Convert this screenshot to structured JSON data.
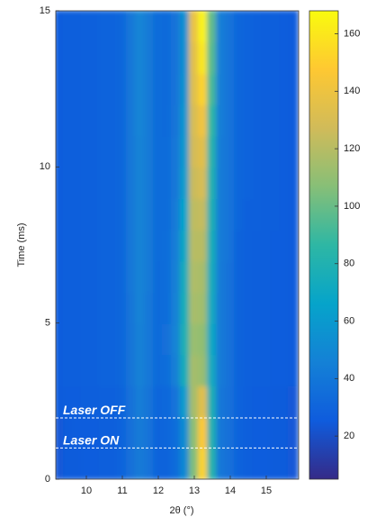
{
  "chart_data": {
    "type": "heatmap",
    "xlabel": "2θ (°)",
    "ylabel": "Time (ms)",
    "xlim": [
      9.15,
      15.9
    ],
    "ylim": [
      0,
      15
    ],
    "xticks": [
      10,
      11,
      12,
      13,
      14,
      15
    ],
    "yticks": [
      0,
      5,
      10,
      15
    ],
    "clim": [
      5,
      168
    ],
    "cticks": [
      20,
      40,
      60,
      80,
      100,
      120,
      140,
      160
    ],
    "colormap": [
      "#352a87",
      "#0f5cdd",
      "#1481d6",
      "#06a4ca",
      "#2eb7a4",
      "#87bf77",
      "#d1bb59",
      "#fec832",
      "#f9fb0e"
    ],
    "x": [
      9.25,
      9.5,
      9.75,
      10,
      10.25,
      10.5,
      10.75,
      11,
      11.25,
      11.5,
      11.75,
      12,
      12.25,
      12.5,
      12.75,
      13,
      13.25,
      13.5,
      13.75,
      14,
      14.25,
      14.5,
      14.75,
      15,
      15.25,
      15.5,
      15.75
    ],
    "y": [
      0.5,
      1.5,
      2.5,
      3.5,
      4.5,
      5.5,
      6.5,
      7.5,
      8.5,
      9.5,
      10.5,
      11.5,
      12.5,
      13.5,
      14.5
    ],
    "z": [
      [
        24,
        25,
        25,
        26,
        26,
        27,
        27,
        29,
        36,
        42,
        38,
        30,
        30,
        34,
        50,
        105,
        152,
        82,
        40,
        36,
        29,
        27,
        26,
        26,
        25,
        25,
        24
      ],
      [
        24,
        25,
        26,
        26,
        26,
        27,
        27,
        29,
        36,
        43,
        38,
        30,
        31,
        35,
        52,
        108,
        148,
        80,
        40,
        36,
        29,
        27,
        26,
        26,
        25,
        25,
        24
      ],
      [
        25,
        26,
        26,
        27,
        27,
        28,
        28,
        30,
        37,
        44,
        39,
        31,
        32,
        38,
        62,
        115,
        135,
        78,
        40,
        36,
        29,
        27,
        26,
        26,
        25,
        25,
        24
      ],
      [
        26,
        27,
        27,
        28,
        28,
        29,
        29,
        31,
        39,
        46,
        41,
        33,
        35,
        45,
        75,
        115,
        112,
        72,
        42,
        37,
        30,
        28,
        27,
        27,
        26,
        26,
        25
      ],
      [
        26,
        27,
        27,
        28,
        28,
        29,
        29,
        31,
        39,
        46,
        41,
        33,
        36,
        47,
        78,
        112,
        110,
        70,
        42,
        37,
        30,
        28,
        27,
        27,
        26,
        26,
        25
      ],
      [
        26,
        27,
        27,
        28,
        28,
        29,
        29,
        31,
        39,
        47,
        41,
        33,
        35,
        46,
        76,
        116,
        114,
        72,
        42,
        37,
        30,
        28,
        27,
        27,
        26,
        26,
        25
      ],
      [
        26,
        27,
        27,
        28,
        28,
        29,
        29,
        31,
        40,
        47,
        42,
        33,
        35,
        45,
        74,
        118,
        116,
        74,
        42,
        37,
        30,
        28,
        27,
        27,
        26,
        26,
        25
      ],
      [
        26,
        27,
        27,
        28,
        28,
        29,
        29,
        31,
        40,
        47,
        42,
        34,
        35,
        44,
        70,
        120,
        120,
        76,
        43,
        38,
        30,
        28,
        27,
        27,
        26,
        26,
        25
      ],
      [
        26,
        27,
        27,
        28,
        28,
        29,
        29,
        31,
        40,
        47,
        42,
        34,
        34,
        42,
        66,
        122,
        124,
        78,
        43,
        38,
        31,
        28,
        28,
        27,
        27,
        26,
        25
      ],
      [
        26,
        27,
        27,
        28,
        28,
        29,
        29,
        31,
        40,
        47,
        42,
        34,
        34,
        40,
        62,
        125,
        130,
        80,
        43,
        38,
        31,
        29,
        28,
        27,
        27,
        26,
        25
      ],
      [
        26,
        27,
        27,
        28,
        28,
        29,
        29,
        31,
        40,
        47,
        42,
        34,
        34,
        40,
        60,
        128,
        135,
        82,
        43,
        38,
        31,
        29,
        28,
        27,
        27,
        26,
        25
      ],
      [
        26,
        27,
        27,
        28,
        28,
        29,
        29,
        31,
        40,
        48,
        42,
        34,
        33,
        39,
        58,
        130,
        142,
        86,
        44,
        38,
        31,
        29,
        28,
        27,
        27,
        26,
        25
      ],
      [
        26,
        27,
        27,
        28,
        28,
        29,
        29,
        31,
        40,
        48,
        42,
        34,
        33,
        38,
        56,
        133,
        152,
        92,
        44,
        38,
        31,
        29,
        28,
        27,
        27,
        26,
        25
      ],
      [
        26,
        27,
        27,
        28,
        28,
        29,
        29,
        31,
        40,
        48,
        42,
        34,
        33,
        38,
        55,
        135,
        160,
        96,
        44,
        38,
        31,
        29,
        28,
        27,
        27,
        26,
        25
      ],
      [
        26,
        27,
        27,
        28,
        28,
        29,
        29,
        31,
        40,
        48,
        42,
        34,
        33,
        38,
        55,
        138,
        165,
        98,
        44,
        38,
        31,
        29,
        28,
        27,
        27,
        26,
        25
      ]
    ],
    "annotations": [
      {
        "text": "Laser OFF",
        "y": 1.96
      },
      {
        "text": "Laser ON",
        "y": 1.0
      }
    ]
  }
}
